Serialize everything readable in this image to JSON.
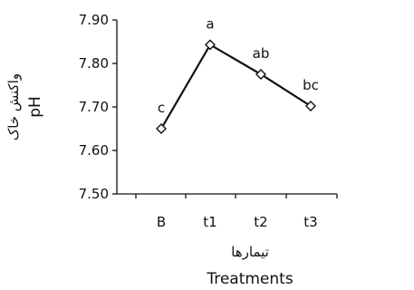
{
  "chart_data": {
    "type": "line",
    "categories": [
      "B",
      "t1",
      "t2",
      "t3"
    ],
    "series": [
      {
        "values": [
          7.65,
          7.843,
          7.775,
          7.702
        ]
      }
    ],
    "significance_labels": [
      "c",
      "a",
      "ab",
      "bc"
    ],
    "ylim": [
      7.5,
      7.9
    ],
    "yticks": [
      "7.50",
      "7.60",
      "7.70",
      "7.80",
      "7.90"
    ],
    "ylabel": {
      "fa": "واکنش خاک",
      "en": "pH"
    },
    "xlabel": {
      "fa": "تیمارها",
      "en": "Treatments"
    },
    "grid": false,
    "legend": false,
    "marker": "diamond-open",
    "line_color": "#111111"
  }
}
